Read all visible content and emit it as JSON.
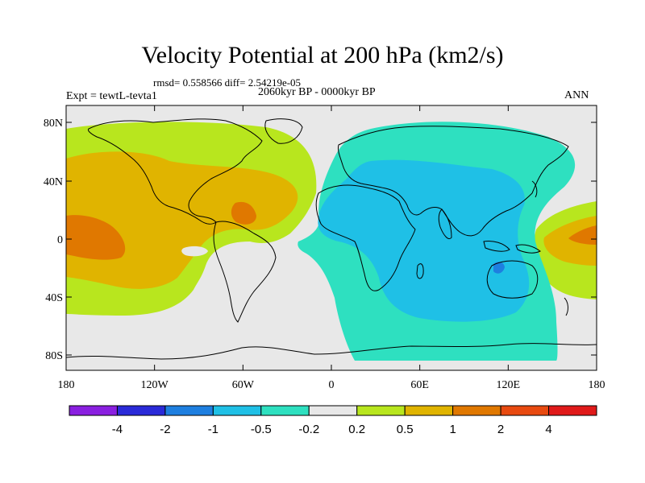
{
  "title": "Velocity Potential at 200 hPa (km2/s)",
  "stats": "rmsd= 0.558566 diff= 2.54219e-05",
  "period": "2060kyr BP - 0000kyr BP",
  "experiment": "Expt = tewtL-tevta1",
  "season": "ANN",
  "axes": {
    "lat_labels": [
      "80N",
      "40N",
      "0",
      "40S",
      "80S"
    ],
    "lon_labels": [
      "180",
      "120W",
      "60W",
      "0",
      "60E",
      "120E",
      "180"
    ]
  },
  "colorbar": {
    "labels": [
      "-4",
      "-2",
      "-1",
      "-0.5",
      "-0.2",
      "0.2",
      "0.5",
      "1",
      "2",
      "4"
    ],
    "colors": [
      "#8a1fe0",
      "#2a2ad8",
      "#1e7fe0",
      "#1fc0e6",
      "#2ee0c0",
      "#e8e8e8",
      "#b8e61e",
      "#e0b400",
      "#e07800",
      "#e84a10",
      "#e01a1a"
    ]
  },
  "regions": {
    "pos_weak": "#b8e61e",
    "pos_mid": "#e0b400",
    "pos_strong": "#e07800",
    "pos_max": "#e84a10",
    "neg_weak": "#2ee0c0",
    "neg_mid": "#1fc0e6",
    "neg_strong": "#1e7fe0",
    "neutral": "#e8e8e8"
  }
}
